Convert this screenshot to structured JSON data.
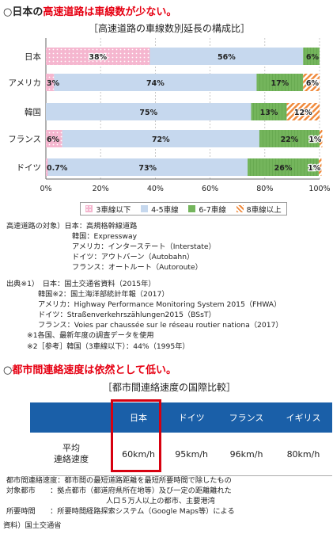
{
  "heading1": {
    "prefix": "○日本の",
    "highlight": "高速道路は車線数が少ない。"
  },
  "chart_data": {
    "type": "bar",
    "orientation": "horizontal-stacked-100",
    "title": "［高速道路の車線数別延長の構成比］",
    "categories": [
      "日本",
      "アメリカ",
      "韓国",
      "フランス",
      "ドイツ"
    ],
    "series": [
      {
        "name": "3車線以下",
        "values": [
          38,
          3,
          0,
          6,
          0.7
        ],
        "labels": [
          "38%",
          "3%",
          "",
          "6%",
          "0.7%"
        ],
        "color": "#f5b6cf"
      },
      {
        "name": "4-5車線",
        "values": [
          56,
          74,
          75,
          72,
          73
        ],
        "labels": [
          "56%",
          "74%",
          "75%",
          "72%",
          "73%"
        ],
        "color": "#c6d8ee"
      },
      {
        "name": "6-7車線",
        "values": [
          6,
          17,
          13,
          22,
          26
        ],
        "labels": [
          "6%",
          "17%",
          "13%",
          "22%",
          "26%"
        ],
        "color": "#74b55c"
      },
      {
        "name": "8車線以上",
        "values": [
          0,
          6,
          12,
          1,
          1
        ],
        "labels": [
          "",
          "6%",
          "12%",
          "1%",
          "1%"
        ],
        "color": "#f08a3c"
      }
    ],
    "xticks": [
      "0%",
      "20%",
      "40%",
      "60%",
      "80%",
      "100%"
    ],
    "xlim": [
      0,
      100
    ],
    "grid": true,
    "legend_position": "bottom"
  },
  "notes1": [
    "高速道路の対象）日本：高規格幹線道路",
    "韓国：Expressway",
    "アメリカ：インターステート（Interstate）",
    "ドイツ：アウトバーン（Autobahn）",
    "フランス：オートルート（Autoroute）"
  ],
  "notes2": [
    "出典※1）　日本：国土交通省資料（2015年）",
    "韓国※2：国土海洋部統計年報（2017）",
    "アメリカ：Highway Performance Monitoring System 2015（FHWA）",
    "ドイツ：Straßenverkehrszählungen2015（BSsT）",
    "フランス：Voies par chaussée sur le réseau routier nationa（2017）",
    "※1各国、最新年度の調査データを使用",
    "※2［参考］韓国（3車線以下）：44%（1995年）"
  ],
  "heading2": {
    "prefix": "○",
    "highlight": "都市間連絡速度は依然として低い。"
  },
  "table_title": "［都市間連絡速度の国際比較］",
  "speed_table": {
    "headers": [
      "",
      "日本",
      "ドイツ",
      "フランス",
      "イギリス"
    ],
    "row_label_1": "平均",
    "row_label_2": "連絡速度",
    "values": [
      "60km/h",
      "95km/h",
      "96km/h",
      "80km/h"
    ]
  },
  "notes3": [
    "都市間連絡速度：都市間の最短道路距離を最短所要時間で除したもの",
    "対象都市　　：拠点都市（都道府県所在地等）及び一定の距離離れた",
    "人口５万人以上の都市、主要港湾",
    "所要時間　　：所要時間経路探索システム（Google Maps等）による"
  ],
  "source": "資料）国土交通省"
}
